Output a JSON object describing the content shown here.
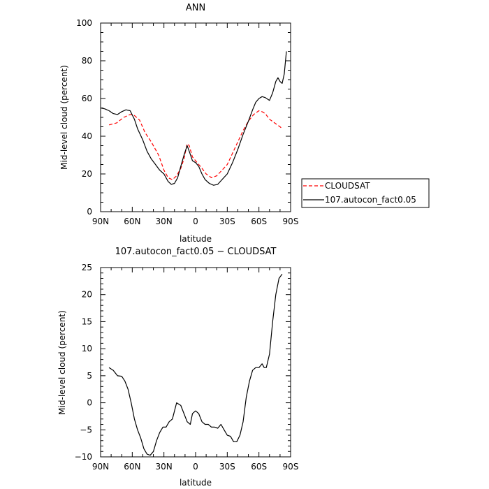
{
  "chart_data": [
    {
      "type": "line",
      "title": "ANN",
      "xlabel": "latitude",
      "ylabel": "Mid-level cloud (percent)",
      "xlim": [
        90,
        -90
      ],
      "ylim": [
        0,
        100
      ],
      "xticks": [
        90,
        60,
        30,
        0,
        -30,
        -60,
        -90
      ],
      "xtick_labels": [
        "90N",
        "60N",
        "30N",
        "0",
        "30S",
        "60S",
        "90S"
      ],
      "yticks": [
        0,
        20,
        40,
        60,
        80,
        100
      ],
      "ytick_labels": [
        "0",
        "20",
        "40",
        "60",
        "80",
        "100"
      ],
      "legend_position": "right",
      "series": [
        {
          "name": "CLOUDSAT",
          "color": "#ff0000",
          "style": "dashed",
          "x": [
            82,
            75,
            68,
            62,
            58,
            53,
            48,
            42,
            35,
            30,
            26,
            22,
            18,
            14,
            11,
            8,
            6,
            3,
            0,
            -3,
            -6,
            -10,
            -15,
            -20,
            -25,
            -30,
            -35,
            -40,
            -45,
            -50,
            -55,
            -60,
            -63,
            -66,
            -70,
            -75,
            -80,
            -82
          ],
          "values": [
            46,
            47,
            50,
            51.5,
            51,
            48.5,
            42,
            37,
            30,
            22,
            18,
            17,
            19,
            23,
            28,
            36,
            35,
            29,
            27,
            25,
            23,
            20,
            18,
            19,
            22,
            25,
            31,
            37,
            43,
            48,
            51.5,
            53.5,
            53,
            52,
            49,
            47,
            45,
            44
          ]
        },
        {
          "name": "107.autocon_fact0.05",
          "color": "#000000",
          "style": "solid",
          "x": [
            90,
            86,
            82,
            78,
            74,
            70,
            66,
            62,
            58,
            55,
            50,
            46,
            42,
            38,
            34,
            30,
            26,
            23,
            20,
            17,
            14,
            11,
            8,
            6,
            3,
            0,
            -3,
            -6,
            -9,
            -13,
            -17,
            -21,
            -25,
            -30,
            -35,
            -40,
            -45,
            -50,
            -54,
            -57,
            -60,
            -63,
            -66,
            -70,
            -73,
            -76,
            -78,
            -80,
            -82,
            -84,
            -86
          ],
          "values": [
            55,
            54.5,
            53.5,
            52,
            51.5,
            53,
            54,
            53.5,
            49,
            44,
            38,
            32,
            28,
            25,
            22,
            20,
            16,
            14.5,
            15,
            18,
            24,
            30,
            35,
            32,
            27,
            26,
            24,
            20,
            17,
            15,
            14,
            14.5,
            17,
            20,
            26,
            33,
            41,
            48,
            54,
            58,
            60,
            61,
            60.5,
            59,
            63,
            69,
            71,
            69,
            68,
            73,
            85
          ]
        }
      ]
    },
    {
      "type": "line",
      "title": "107.autocon_fact0.05 − CLOUDSAT",
      "xlabel": "latitude",
      "ylabel": "Mid-level cloud (percent)",
      "xlim": [
        90,
        -90
      ],
      "ylim": [
        -10,
        25
      ],
      "xticks": [
        90,
        60,
        30,
        0,
        -30,
        -60,
        -90
      ],
      "xtick_labels": [
        "90N",
        "60N",
        "30N",
        "0",
        "30S",
        "60S",
        "90S"
      ],
      "yticks": [
        -10,
        -5,
        0,
        5,
        10,
        15,
        20,
        25
      ],
      "ytick_labels": [
        "−10",
        "−5",
        "0",
        "5",
        "10",
        "15",
        "20",
        "25"
      ],
      "series": [
        {
          "color": "#000000",
          "style": "solid",
          "x": [
            82,
            78,
            74,
            70,
            67,
            64,
            61,
            58,
            55,
            52,
            49,
            46,
            43,
            40,
            37,
            34,
            31,
            28,
            25,
            22,
            18,
            14,
            11,
            8,
            5,
            3,
            0,
            -3,
            -6,
            -9,
            -12,
            -15,
            -18,
            -21,
            -24,
            -27,
            -30,
            -33,
            -36,
            -39,
            -42,
            -45,
            -48,
            -51,
            -54,
            -57,
            -60,
            -63,
            -65,
            -67,
            -70,
            -73,
            -76,
            -79,
            -82
          ],
          "values": [
            6.5,
            6,
            5,
            4.9,
            4,
            2.5,
            0,
            -3,
            -5,
            -6.5,
            -8.5,
            -9.5,
            -9.7,
            -9,
            -7,
            -5.5,
            -4.5,
            -4.5,
            -3.5,
            -3,
            0,
            -0.5,
            -2,
            -3.5,
            -4,
            -2,
            -1.5,
            -2,
            -3.5,
            -4,
            -4,
            -4.5,
            -4.5,
            -4.7,
            -4,
            -5,
            -6,
            -6.2,
            -7.2,
            -7.2,
            -6,
            -3.5,
            1,
            4,
            6,
            6.5,
            6.5,
            7.2,
            6.5,
            6.5,
            9,
            15,
            20,
            23,
            23.8
          ]
        }
      ]
    }
  ]
}
